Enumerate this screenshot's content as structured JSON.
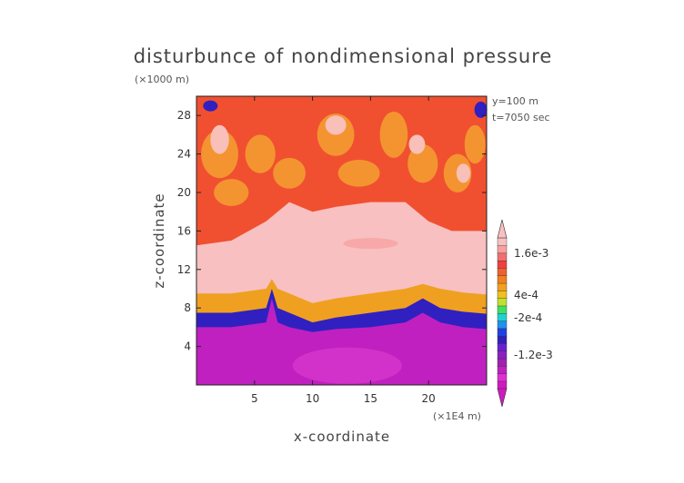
{
  "chart_data": {
    "type": "heatmap",
    "title": "disturbunce of nondimensional pressure",
    "xlabel": "x-coordinate",
    "ylabel": "z-coordinate",
    "x_unit": "(×1E4 m)",
    "y_unit": "(×1000 m)",
    "annotations": [
      "y=100 m",
      "t=7050 sec"
    ],
    "xlim": [
      0,
      25
    ],
    "ylim": [
      0,
      30
    ],
    "x_ticks": [
      5,
      10,
      15,
      20
    ],
    "y_ticks": [
      4,
      8,
      12,
      16,
      20,
      24,
      28
    ],
    "colorbar": {
      "tick_labels": [
        "1.6e-3",
        "4e-4",
        "-2e-4",
        "-1.2e-3"
      ],
      "colors": [
        "#d01ac0",
        "#e030d0",
        "#c020c0",
        "#a020b0",
        "#8a20c0",
        "#6a20d0",
        "#3020c0",
        "#2040e0",
        "#2090f0",
        "#20d0d0",
        "#40e060",
        "#c0e030",
        "#f0c020",
        "#f0a020",
        "#f08020",
        "#f06030",
        "#f04040",
        "#f07070",
        "#f8a0a0",
        "#f8c0c0"
      ]
    },
    "layers": [
      {
        "name": "-1.2e-3 and below",
        "color": "#c020c0",
        "z_top_x": [
          0,
          3,
          6,
          6.5,
          7,
          8,
          10,
          12,
          15,
          18,
          19.5,
          21,
          23,
          25
        ],
        "z_top": [
          6,
          6,
          6.5,
          9,
          6.5,
          6,
          5.5,
          5.8,
          6,
          6.5,
          7.5,
          6.5,
          6,
          5.8
        ]
      },
      {
        "name": "-2e-4",
        "color": "#3020c0",
        "z_top_x": [
          0,
          3,
          6,
          6.5,
          7,
          8,
          10,
          12,
          15,
          18,
          19.5,
          21,
          23,
          25
        ],
        "z_top": [
          7.5,
          7.5,
          8,
          10,
          8,
          7.5,
          6.5,
          7,
          7.5,
          8,
          9,
          8,
          7.6,
          7.4
        ]
      },
      {
        "name": "4e-4",
        "color": "#f0a020",
        "z_top_x": [
          0,
          3,
          6,
          6.5,
          7,
          8,
          10,
          12,
          15,
          18,
          19.5,
          21,
          23,
          25
        ],
        "z_top": [
          9.5,
          9.5,
          10,
          11,
          10,
          9.5,
          8.5,
          9,
          9.5,
          10,
          10.5,
          10,
          9.6,
          9.4
        ]
      },
      {
        "name": "1.6e-3",
        "color": "#f8c0c0",
        "z_top_x": [
          0,
          3,
          6,
          8,
          10,
          12,
          15,
          18,
          20,
          22,
          25
        ],
        "z_top": [
          14.5,
          15,
          17,
          19,
          18,
          18.5,
          19,
          19,
          17,
          16,
          16
        ]
      }
    ]
  }
}
